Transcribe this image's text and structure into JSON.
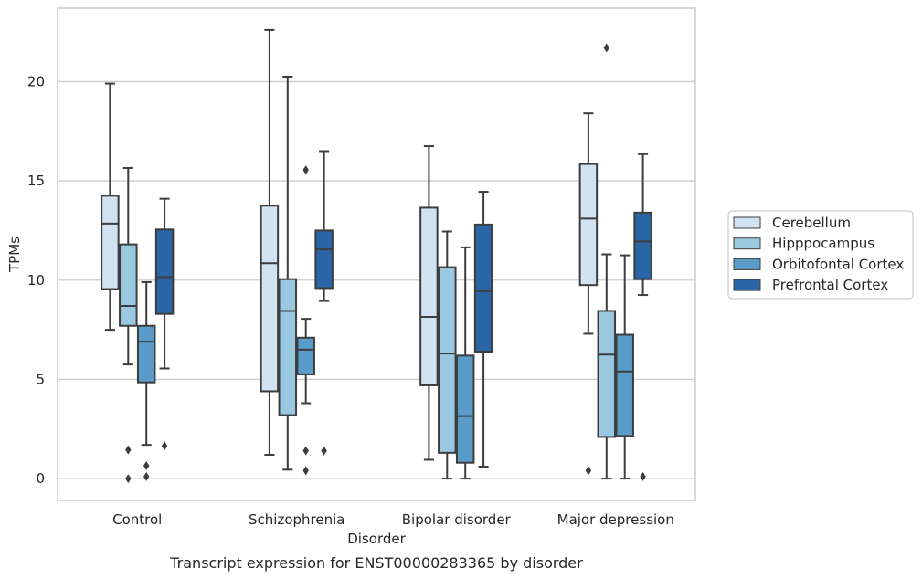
{
  "chart_data": {
    "type": "box",
    "title": "",
    "caption": "Transcript expression for ENST00000283365 by disorder",
    "xlabel": "Disorder",
    "ylabel": "TPMs",
    "ylim": [
      -1.1,
      23.7
    ],
    "yticks": [
      0,
      5,
      10,
      15,
      20
    ],
    "grid": "horizontal",
    "legend_position": "right",
    "categories": [
      "Control",
      "Schizophrenia",
      "Bipolar disorder",
      "Major depression"
    ],
    "series": [
      {
        "name": "Cerebellum",
        "color": "#d1e2f2",
        "boxes": [
          {
            "min": 7.5,
            "q1": 9.55,
            "median": 12.85,
            "q3": 14.25,
            "max": 19.9,
            "outliers": []
          },
          {
            "min": 1.2,
            "q1": 4.4,
            "median": 10.85,
            "q3": 13.75,
            "max": 22.6,
            "outliers": []
          },
          {
            "min": 0.95,
            "q1": 4.7,
            "median": 8.15,
            "q3": 13.65,
            "max": 16.75,
            "outliers": []
          },
          {
            "min": 7.3,
            "q1": 9.75,
            "median": 13.1,
            "q3": 15.85,
            "max": 18.4,
            "outliers": [
              0.4
            ]
          }
        ]
      },
      {
        "name": "Hipppocampus",
        "color": "#9ac8e0",
        "boxes": [
          {
            "min": 5.75,
            "q1": 7.7,
            "median": 8.7,
            "q3": 11.8,
            "max": 15.65,
            "outliers": [
              1.45,
              0.0
            ]
          },
          {
            "min": 0.45,
            "q1": 3.2,
            "median": 8.45,
            "q3": 10.05,
            "max": 20.25,
            "outliers": []
          },
          {
            "min": 0.0,
            "q1": 1.3,
            "median": 6.3,
            "q3": 10.65,
            "max": 12.45,
            "outliers": []
          },
          {
            "min": 0.0,
            "q1": 2.1,
            "median": 6.25,
            "q3": 8.45,
            "max": 11.3,
            "outliers": [
              21.7
            ]
          }
        ]
      },
      {
        "name": "Orbitofontal Cortex",
        "color": "#5a9cc9",
        "boxes": [
          {
            "min": 1.7,
            "q1": 4.85,
            "median": 6.9,
            "q3": 7.7,
            "max": 9.9,
            "outliers": [
              0.65,
              0.1
            ]
          },
          {
            "min": 3.8,
            "q1": 5.25,
            "median": 6.5,
            "q3": 7.1,
            "max": 8.05,
            "outliers": [
              15.55,
              1.4,
              0.4
            ]
          },
          {
            "min": 0.0,
            "q1": 0.8,
            "median": 3.15,
            "q3": 6.2,
            "max": 11.65,
            "outliers": []
          },
          {
            "min": 0.0,
            "q1": 2.15,
            "median": 5.4,
            "q3": 7.25,
            "max": 11.25,
            "outliers": []
          }
        ]
      },
      {
        "name": "Prefrontal Cortex",
        "color": "#2a65a6",
        "boxes": [
          {
            "min": 5.55,
            "q1": 8.3,
            "median": 10.15,
            "q3": 12.55,
            "max": 14.1,
            "outliers": [
              1.65
            ]
          },
          {
            "min": 8.95,
            "q1": 9.6,
            "median": 11.55,
            "q3": 12.5,
            "max": 16.5,
            "outliers": [
              1.4
            ]
          },
          {
            "min": 0.6,
            "q1": 6.4,
            "median": 9.45,
            "q3": 12.8,
            "max": 14.45,
            "outliers": []
          },
          {
            "min": 9.25,
            "q1": 10.05,
            "median": 11.95,
            "q3": 13.4,
            "max": 16.35,
            "outliers": [
              0.1
            ]
          }
        ]
      }
    ]
  }
}
